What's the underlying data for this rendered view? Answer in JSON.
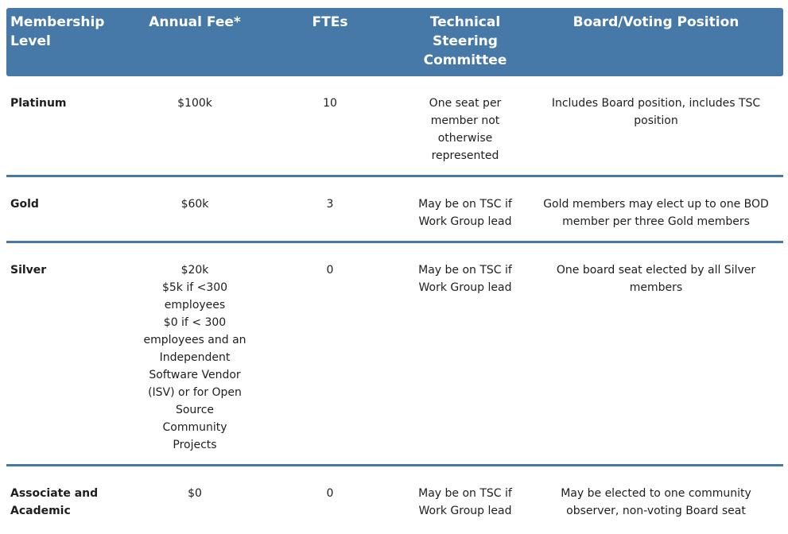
{
  "colors": {
    "header_background": "#4678a8",
    "header_text": "#ffffff",
    "divider": "#4678a8",
    "body_text": "#1e1e1e",
    "page_background": "#ffffff"
  },
  "table": {
    "header": {
      "membership_level": "Membership\nLevel",
      "annual_fee": "Annual Fee*",
      "ftes": "FTEs",
      "tsc": "Technical\nSteering\nCommittee",
      "board": "Board/Voting Position"
    },
    "rows": [
      {
        "level": "Platinum",
        "annual_fee": "$100k",
        "ftes": "10",
        "tsc": "One seat per\nmember not\notherwise\nrepresented",
        "board": "Includes Board position, includes TSC\nposition"
      },
      {
        "level": "Gold",
        "annual_fee": "$60k",
        "ftes": "3",
        "tsc": "May be on TSC if\nWork Group lead",
        "board": "Gold members may elect up to one BOD\nmember per three Gold members"
      },
      {
        "level": "Silver",
        "annual_fee": "$20k\n$5k if <300\nemployees\n$0 if < 300\nemployees and an\nIndependent\nSoftware Vendor\n(ISV) or for Open\nSource\nCommunity\nProjects",
        "ftes": "0",
        "tsc": "May be on TSC if\nWork Group lead",
        "board": "One board seat elected by all Silver\nmembers"
      },
      {
        "level": "Associate and\nAcademic",
        "annual_fee": "$0",
        "ftes": "0",
        "tsc": "May be on TSC if\nWork Group lead",
        "board": "May be elected to one community\nobserver, non-voting Board seat"
      }
    ]
  }
}
